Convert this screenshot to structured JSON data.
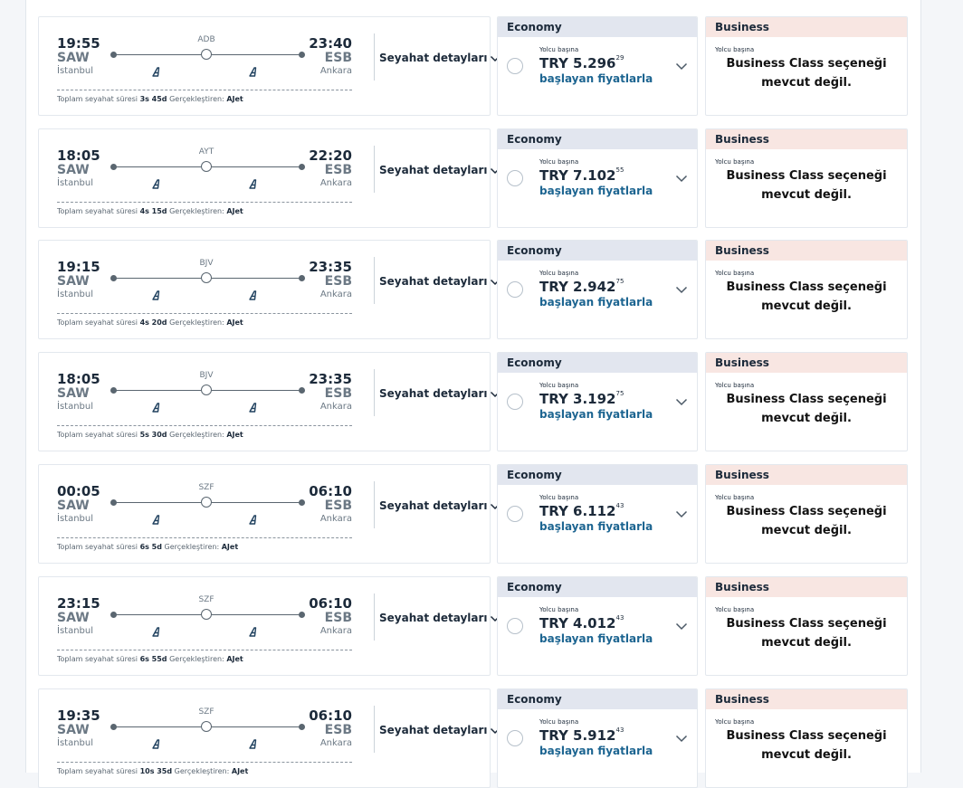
{
  "labels": {
    "details": "Seyahat detayları",
    "total_time": "Toplam seyahat süresi",
    "operated_by": "Gerçekleştiren:",
    "economy": "Economy",
    "business": "Business",
    "per_passenger": "Yolcu başına",
    "starting_from": "başlayan fiyatlarla",
    "business_na": "Business Class seçeneği mevcut değil."
  },
  "flights": [
    {
      "dep_time": "19:55",
      "dep_code": "SAW",
      "dep_city": "İstanbul",
      "arr_time": "23:40",
      "arr_code": "ESB",
      "arr_city": "Ankara",
      "stop": "ADB",
      "duration": "3s 45d",
      "operator": "AJet",
      "price_main": "TRY 5.296",
      "price_dec": "29"
    },
    {
      "dep_time": "18:05",
      "dep_code": "SAW",
      "dep_city": "İstanbul",
      "arr_time": "22:20",
      "arr_code": "ESB",
      "arr_city": "Ankara",
      "stop": "AYT",
      "duration": "4s 15d",
      "operator": "AJet",
      "price_main": "TRY 7.102",
      "price_dec": "55"
    },
    {
      "dep_time": "19:15",
      "dep_code": "SAW",
      "dep_city": "İstanbul",
      "arr_time": "23:35",
      "arr_code": "ESB",
      "arr_city": "Ankara",
      "stop": "BJV",
      "duration": "4s 20d",
      "operator": "AJet",
      "price_main": "TRY 2.942",
      "price_dec": "75"
    },
    {
      "dep_time": "18:05",
      "dep_code": "SAW",
      "dep_city": "İstanbul",
      "arr_time": "23:35",
      "arr_code": "ESB",
      "arr_city": "Ankara",
      "stop": "BJV",
      "duration": "5s 30d",
      "operator": "AJet",
      "price_main": "TRY 3.192",
      "price_dec": "75"
    },
    {
      "dep_time": "00:05",
      "dep_code": "SAW",
      "dep_city": "İstanbul",
      "arr_time": "06:10",
      "arr_code": "ESB",
      "arr_city": "Ankara",
      "stop": "SZF",
      "duration": "6s 5d",
      "operator": "AJet",
      "price_main": "TRY 6.112",
      "price_dec": "43"
    },
    {
      "dep_time": "23:15",
      "dep_code": "SAW",
      "dep_city": "İstanbul",
      "arr_time": "06:10",
      "arr_code": "ESB",
      "arr_city": "Ankara",
      "stop": "SZF",
      "duration": "6s 55d",
      "operator": "AJet",
      "price_main": "TRY 4.012",
      "price_dec": "43"
    },
    {
      "dep_time": "19:35",
      "dep_code": "SAW",
      "dep_city": "İstanbul",
      "arr_time": "06:10",
      "arr_code": "ESB",
      "arr_city": "Ankara",
      "stop": "SZF",
      "duration": "10s 35d",
      "operator": "AJet",
      "price_main": "TRY 5.912",
      "price_dec": "43"
    }
  ]
}
